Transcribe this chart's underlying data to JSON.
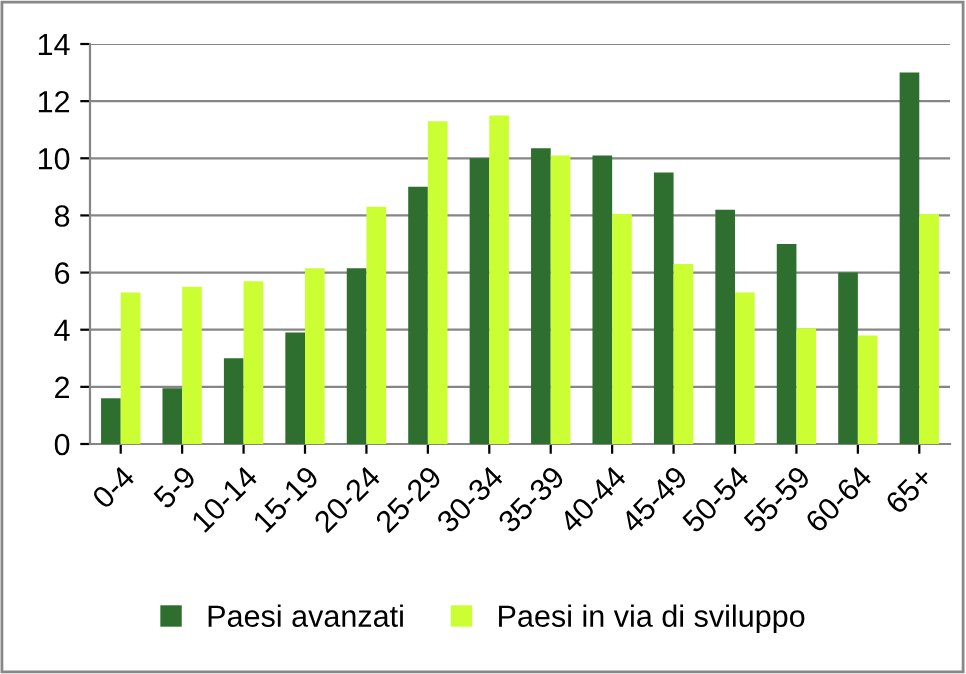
{
  "chart_data": {
    "type": "bar",
    "categories": [
      "0-4",
      "5-9",
      "10-14",
      "15-19",
      "20-24",
      "25-29",
      "30-34",
      "35-39",
      "40-44",
      "45-49",
      "50-54",
      "55-59",
      "60-64",
      "65+"
    ],
    "series": [
      {
        "name": "Paesi avanzati",
        "color": "#2e6e2e",
        "values": [
          1.6,
          1.95,
          3.0,
          3.9,
          6.15,
          9.0,
          10.0,
          10.35,
          10.1,
          9.5,
          8.2,
          7.0,
          6.0,
          13.0
        ]
      },
      {
        "name": "Paesi in via di sviluppo",
        "color": "#ccff33",
        "values": [
          5.3,
          5.5,
          5.7,
          6.15,
          8.3,
          11.3,
          11.5,
          10.1,
          8.05,
          6.3,
          5.3,
          4.05,
          3.8,
          8.05
        ]
      }
    ],
    "ylim": [
      0,
      14
    ],
    "yticks": [
      0,
      2,
      4,
      6,
      8,
      10,
      12,
      14
    ],
    "grid": "y",
    "legend": "bottom"
  }
}
